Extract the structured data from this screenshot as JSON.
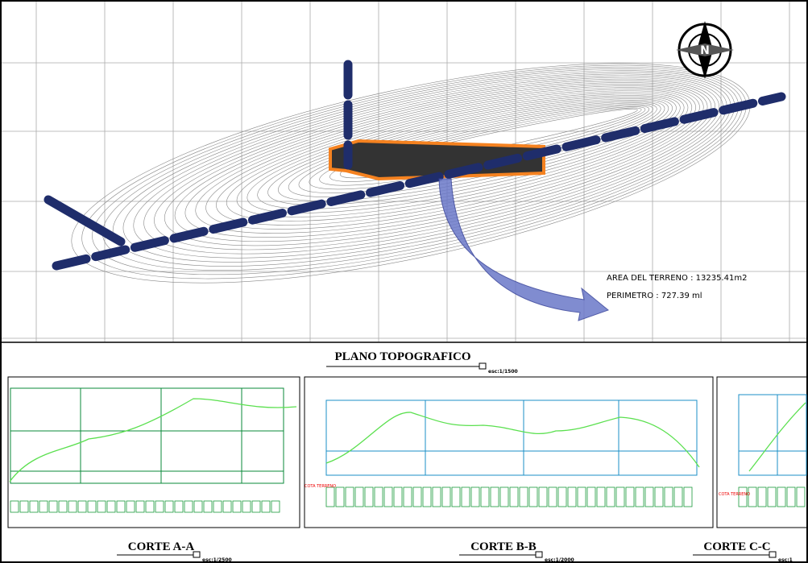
{
  "plan": {
    "title": "PLANO TOPOGRAFICO",
    "scale": "esc:1/1500",
    "area": "AREA DEL TERRENO : 13235.41m2",
    "perimeter": "PERIMETRO  : 727.39 ml"
  },
  "sections": [
    {
      "title": "CORTE A-A",
      "scale": "esc:1/2500"
    },
    {
      "title": "CORTE B-B",
      "scale": "esc:1/2000",
      "cota": "COTA TERRENO"
    },
    {
      "title": "CORTE C-C",
      "scale": "esc:1",
      "cota": "COTA TERRENO"
    }
  ]
}
